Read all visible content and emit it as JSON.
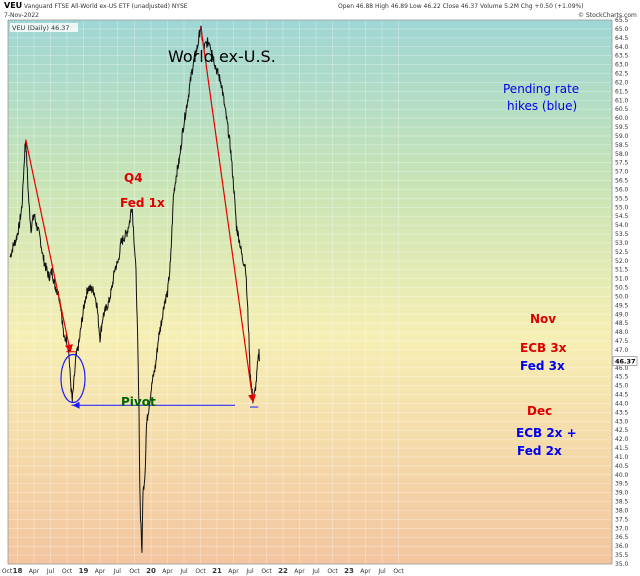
{
  "header": {
    "symbol": "VEU",
    "description": "Vanguard FTSE All-World ex-US ETF (unadjusted) NYSE",
    "date": "7-Nov-2022",
    "ohlc": "Open 46.88  High 46.89  Low 46.22  Close 46.37  Volume 5.2M  Chg +0.50 (+1.09%)",
    "source": "© StockCharts.com",
    "legend": "VEU (Daily) 46.37"
  },
  "chart_data": {
    "type": "line",
    "title": "World ex-U.S.",
    "series": [
      {
        "name": "VEU (Daily)",
        "points": [
          [
            0,
            52.2
          ],
          [
            4,
            52.8
          ],
          [
            8,
            53.2
          ],
          [
            12,
            53.9
          ],
          [
            16,
            55.1
          ],
          [
            18,
            56.8
          ],
          [
            20,
            58.4
          ],
          [
            21,
            58.8
          ],
          [
            23,
            57
          ],
          [
            25,
            55.3
          ],
          [
            28,
            53.8
          ],
          [
            32,
            54.6
          ],
          [
            36,
            53.9
          ],
          [
            40,
            53.3
          ],
          [
            44,
            52.2
          ],
          [
            48,
            51.6
          ],
          [
            52,
            51.1
          ],
          [
            56,
            51.4
          ],
          [
            60,
            50.6
          ],
          [
            64,
            50.2
          ],
          [
            66,
            49.9
          ],
          [
            68,
            49.4
          ],
          [
            70,
            48.5
          ],
          [
            72,
            47.6
          ],
          [
            75,
            47.7
          ],
          [
            78,
            47.1
          ],
          [
            80,
            45.7
          ],
          [
            81,
            45.1
          ],
          [
            82,
            44.6
          ],
          [
            83,
            44.1
          ],
          [
            85,
            45.1
          ],
          [
            88,
            46.6
          ],
          [
            92,
            47.4
          ],
          [
            96,
            48.7
          ],
          [
            100,
            49.8
          ],
          [
            104,
            50.5
          ],
          [
            108,
            50.4
          ],
          [
            112,
            50.3
          ],
          [
            116,
            49.5
          ],
          [
            118,
            48.5
          ],
          [
            120,
            47.7
          ],
          [
            124,
            48.9
          ],
          [
            128,
            49.3
          ],
          [
            132,
            49.7
          ],
          [
            136,
            50.5
          ],
          [
            140,
            51.6
          ],
          [
            144,
            51.9
          ],
          [
            148,
            53
          ],
          [
            152,
            53.3
          ],
          [
            156,
            53.6
          ],
          [
            160,
            54.3
          ],
          [
            162,
            55.1
          ],
          [
            163,
            54.9
          ],
          [
            165,
            53.5
          ],
          [
            168,
            51.3
          ],
          [
            170,
            47.9
          ],
          [
            172,
            43.5
          ],
          [
            173,
            39.5
          ],
          [
            174,
            37.7
          ],
          [
            175,
            36.8
          ],
          [
            176,
            35.4
          ],
          [
            177,
            38.8
          ],
          [
            180,
            40.1
          ],
          [
            182,
            42.8
          ],
          [
            186,
            44.1
          ],
          [
            190,
            45.3
          ],
          [
            194,
            46.1
          ],
          [
            198,
            47.7
          ],
          [
            202,
            48.6
          ],
          [
            206,
            49.7
          ],
          [
            210,
            50.2
          ],
          [
            214,
            51.9
          ],
          [
            218,
            55.7
          ],
          [
            222,
            56.9
          ],
          [
            226,
            57.7
          ],
          [
            230,
            59.2
          ],
          [
            234,
            60.3
          ],
          [
            238,
            61.3
          ],
          [
            242,
            62.5
          ],
          [
            246,
            63.4
          ],
          [
            250,
            64
          ],
          [
            254,
            65.1
          ],
          [
            256,
            64.6
          ],
          [
            258,
            63.9
          ],
          [
            262,
            64.2
          ],
          [
            266,
            64.3
          ],
          [
            270,
            63.6
          ],
          [
            274,
            62.9
          ],
          [
            278,
            62.4
          ],
          [
            282,
            61.9
          ],
          [
            286,
            60.7
          ],
          [
            290,
            59.6
          ],
          [
            294,
            58.3
          ],
          [
            298,
            56.3
          ],
          [
            302,
            53.9
          ],
          [
            306,
            53.1
          ],
          [
            310,
            52.1
          ],
          [
            314,
            51.7
          ],
          [
            318,
            48.3
          ],
          [
            320,
            45.9
          ],
          [
            322,
            44.9
          ],
          [
            324,
            44.2
          ],
          [
            326,
            44.5
          ],
          [
            328,
            45.1
          ],
          [
            330,
            46.1
          ],
          [
            332,
            46.9
          ],
          [
            333,
            46.4
          ]
        ]
      }
    ],
    "yaxis": {
      "min": 35.0,
      "max": 65.5,
      "ticks": [
        "35.0",
        "35.5",
        "36.0",
        "36.5",
        "37.0",
        "37.5",
        "38.0",
        "38.5",
        "39.0",
        "39.5",
        "40.0",
        "40.5",
        "41.0",
        "41.5",
        "42.0",
        "42.5",
        "43.0",
        "43.5",
        "44.0",
        "44.5",
        "45.0",
        "45.5",
        "46.0",
        "46.5",
        "47.0",
        "47.5",
        "48.0",
        "48.5",
        "49.0",
        "49.5",
        "50.0",
        "50.5",
        "51.0",
        "51.5",
        "52.0",
        "52.5",
        "53.0",
        "53.5",
        "54.0",
        "54.5",
        "55.0",
        "55.5",
        "56.0",
        "56.5",
        "57.0",
        "57.5",
        "58.0",
        "58.5",
        "59.0",
        "59.5",
        "60.0",
        "60.5",
        "61.0",
        "61.5",
        "62.0",
        "62.5",
        "63.0",
        "63.5",
        "64.0",
        "64.5",
        "65.0",
        "65.5"
      ],
      "last_value": "46.37"
    },
    "xaxis": {
      "ticks": [
        {
          "label": "Oct",
          "pos": -4,
          "bold": false
        },
        {
          "label": "18",
          "pos": 10,
          "bold": true
        },
        {
          "label": "Apr",
          "pos": 32,
          "bold": false
        },
        {
          "label": "Jul",
          "pos": 54,
          "bold": false
        },
        {
          "label": "Oct",
          "pos": 76,
          "bold": false
        },
        {
          "label": "19",
          "pos": 98,
          "bold": true
        },
        {
          "label": "Apr",
          "pos": 120,
          "bold": false
        },
        {
          "label": "Jul",
          "pos": 143,
          "bold": false
        },
        {
          "label": "Oct",
          "pos": 166,
          "bold": false
        },
        {
          "label": "20",
          "pos": 188,
          "bold": true
        },
        {
          "label": "Apr",
          "pos": 210,
          "bold": false
        },
        {
          "label": "Jul",
          "pos": 232,
          "bold": false
        },
        {
          "label": "Oct",
          "pos": 254,
          "bold": false
        },
        {
          "label": "21",
          "pos": 276,
          "bold": true
        },
        {
          "label": "Apr",
          "pos": 298,
          "bold": false
        },
        {
          "label": "Jul",
          "pos": 320,
          "bold": false
        },
        {
          "label": "Oct",
          "pos": 342,
          "bold": false
        },
        {
          "label": "22",
          "pos": 364,
          "bold": true
        },
        {
          "label": "Apr",
          "pos": 386,
          "bold": false
        },
        {
          "label": "Jul",
          "pos": 408,
          "bold": false
        },
        {
          "label": "Oct",
          "pos": 430,
          "bold": false
        },
        {
          "label": "23",
          "pos": 452,
          "bold": true
        },
        {
          "label": "Apr",
          "pos": 474,
          "bold": false
        },
        {
          "label": "Jul",
          "pos": 496,
          "bold": false
        },
        {
          "label": "Oct",
          "pos": 518,
          "bold": false
        }
      ]
    },
    "annotations": [
      {
        "text": "World ex-U.S.",
        "color": "#000000",
        "size": 16,
        "bold": false,
        "xp": 168,
        "yp": 62
      },
      {
        "text": "Q4",
        "color": "#dd0000",
        "size": 12,
        "bold": true,
        "xp": 124,
        "yp": 182
      },
      {
        "text": "Fed 1x",
        "color": "#dd0000",
        "size": 12,
        "bold": true,
        "xp": 120,
        "yp": 207
      },
      {
        "text": "Pivot",
        "color": "#006400",
        "size": 12,
        "bold": true,
        "xp": 121,
        "yp": 406
      },
      {
        "text": "Pending rate",
        "color": "#0000ee",
        "size": 12,
        "bold": false,
        "xp": 503,
        "yp": 93
      },
      {
        "text": "hikes (blue)",
        "color": "#0000ee",
        "size": 12,
        "bold": false,
        "xp": 507,
        "yp": 110
      },
      {
        "text": "Nov",
        "color": "#dd0000",
        "size": 12,
        "bold": true,
        "xp": 530,
        "yp": 323
      },
      {
        "text": "ECB 3x",
        "color": "#dd0000",
        "size": 12,
        "bold": true,
        "xp": 520,
        "yp": 352
      },
      {
        "text": "Fed 3x",
        "color": "#0000ee",
        "size": 12,
        "bold": true,
        "xp": 520,
        "yp": 370
      },
      {
        "text": "Dec",
        "color": "#dd0000",
        "size": 12,
        "bold": true,
        "xp": 527,
        "yp": 415
      },
      {
        "text": "ECB 2x +",
        "color": "#0000ee",
        "size": 12,
        "bold": true,
        "xp": 516,
        "yp": 437
      },
      {
        "text": "Fed 2x",
        "color": "#0000ee",
        "size": 12,
        "bold": true,
        "xp": 517,
        "yp": 455
      }
    ]
  }
}
